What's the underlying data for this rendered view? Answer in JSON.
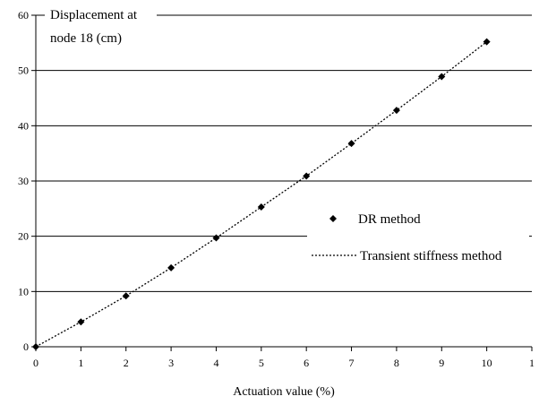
{
  "chart_data": {
    "type": "scatter",
    "title": "",
    "xlabel": "Actuation value (%)",
    "ylabel_lines": [
      "Displacement at",
      "node 18 (cm)"
    ],
    "xlim": [
      0,
      11
    ],
    "ylim": [
      0,
      60
    ],
    "x_tick_labels": [
      "0",
      "1",
      "2",
      "3",
      "4",
      "5",
      "6",
      "7",
      "8",
      "9",
      "10",
      "1"
    ],
    "y_tick_labels": [
      "0",
      "10",
      "20",
      "30",
      "40",
      "50",
      "60"
    ],
    "grid": "horizontal",
    "legend_position": "right",
    "series": [
      {
        "name": "DR method",
        "style": "markers",
        "marker": "diamond",
        "color": "#000000",
        "points": [
          {
            "x": 0,
            "y": 0
          },
          {
            "x": 1,
            "y": 4.5
          },
          {
            "x": 2,
            "y": 9.2
          },
          {
            "x": 3,
            "y": 14.3
          },
          {
            "x": 4,
            "y": 19.7
          },
          {
            "x": 5,
            "y": 25.3
          },
          {
            "x": 6,
            "y": 30.9
          },
          {
            "x": 7,
            "y": 36.8
          },
          {
            "x": 8,
            "y": 42.8
          },
          {
            "x": 9,
            "y": 48.9
          },
          {
            "x": 10,
            "y": 55.2
          }
        ]
      },
      {
        "name": "Transient stiffness method",
        "style": "dotted-line",
        "color": "#000000",
        "points": [
          {
            "x": 0,
            "y": 0
          },
          {
            "x": 1,
            "y": 4.5
          },
          {
            "x": 2,
            "y": 9.2
          },
          {
            "x": 3,
            "y": 14.3
          },
          {
            "x": 4,
            "y": 19.7
          },
          {
            "x": 5,
            "y": 25.3
          },
          {
            "x": 6,
            "y": 30.9
          },
          {
            "x": 7,
            "y": 36.8
          },
          {
            "x": 8,
            "y": 42.8
          },
          {
            "x": 9,
            "y": 48.9
          },
          {
            "x": 10,
            "y": 55.2
          }
        ]
      }
    ]
  }
}
